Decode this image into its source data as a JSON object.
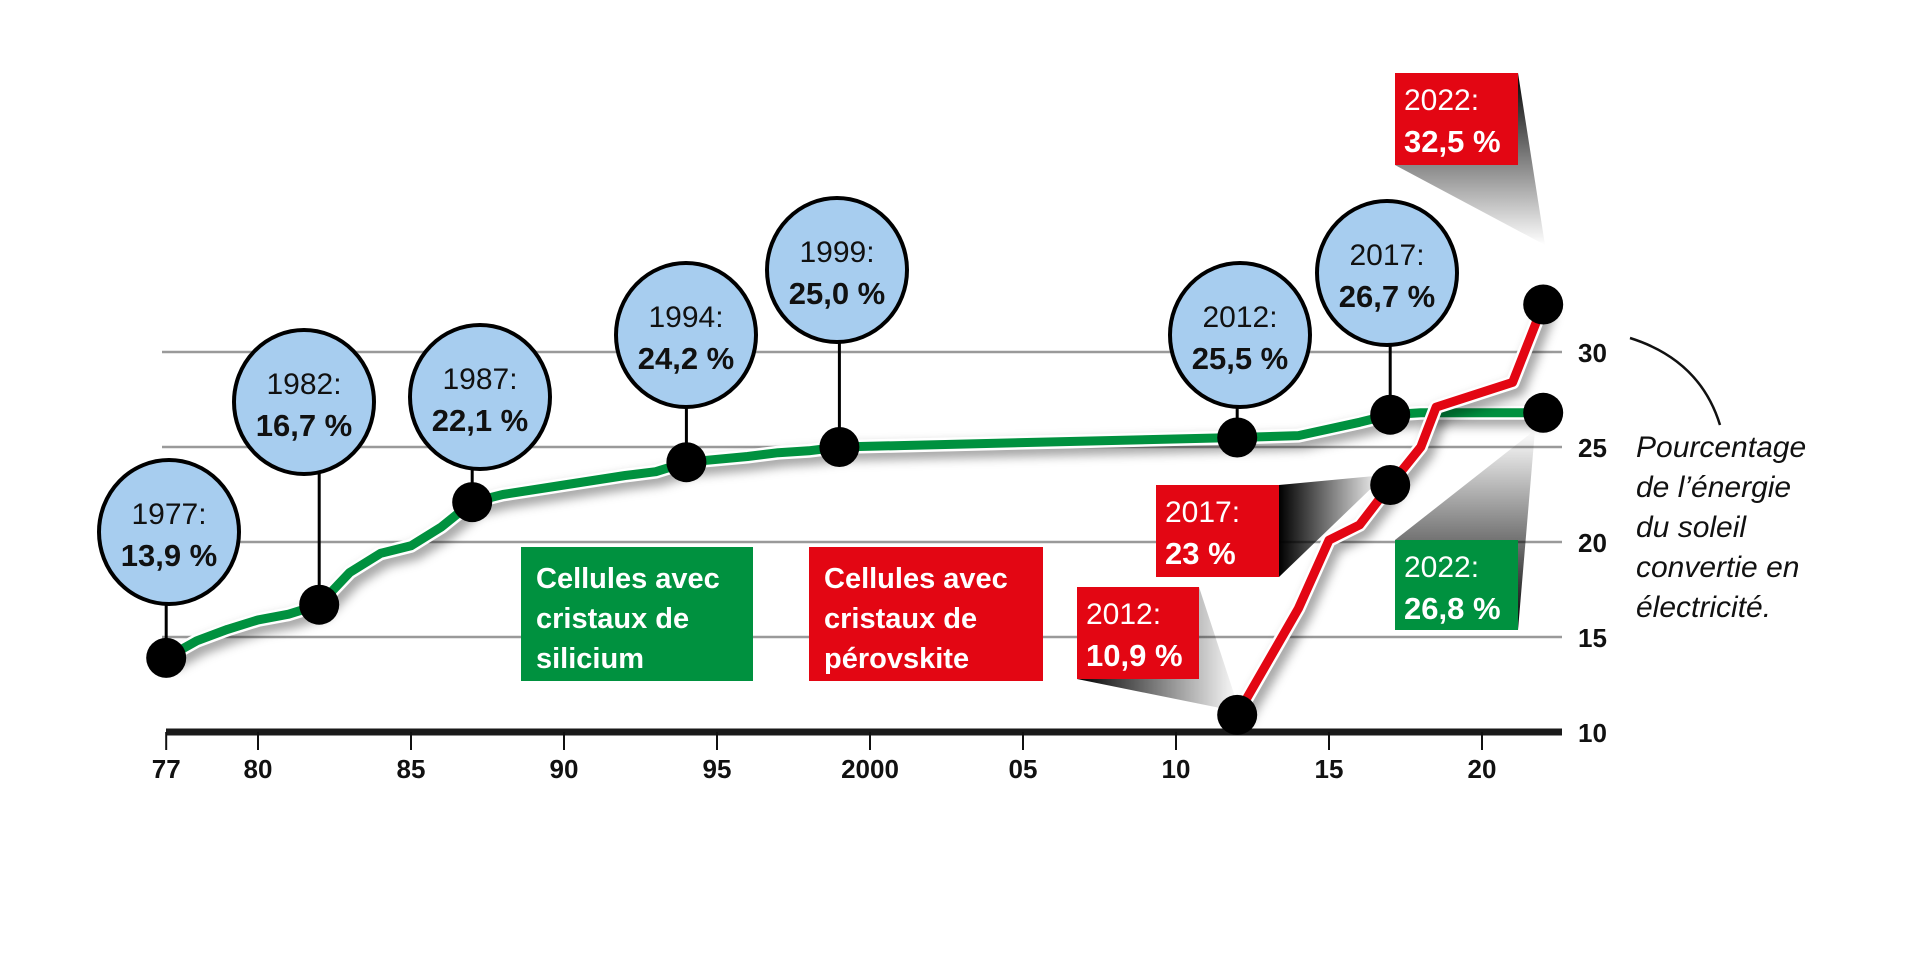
{
  "chart_data": {
    "type": "line",
    "title": "",
    "xlabel": "",
    "ylabel": "Pourcentage de l’énergie du soleil convertie en électricité.",
    "ylabel_lines": [
      "Pourcentage",
      "de l’énergie",
      "du soleil",
      "convertie en",
      "électricité."
    ],
    "xlim": [
      1977,
      2022
    ],
    "ylim": [
      10,
      33
    ],
    "grid": true,
    "x_ticks": [
      {
        "value": 1977,
        "label": "77"
      },
      {
        "value": 1980,
        "label": "80"
      },
      {
        "value": 1985,
        "label": "85"
      },
      {
        "value": 1990,
        "label": "90"
      },
      {
        "value": 1995,
        "label": "95"
      },
      {
        "value": 2000,
        "label": "2000"
      },
      {
        "value": 2005,
        "label": "05"
      },
      {
        "value": 2010,
        "label": "10"
      },
      {
        "value": 2015,
        "label": "15"
      },
      {
        "value": 2020,
        "label": "20"
      }
    ],
    "y_ticks": [
      {
        "value": 10,
        "label": "10"
      },
      {
        "value": 15,
        "label": "15"
      },
      {
        "value": 20,
        "label": "20"
      },
      {
        "value": 25,
        "label": "25"
      },
      {
        "value": 30,
        "label": "30"
      }
    ],
    "series": [
      {
        "name": "Cellules avec cristaux de silicium",
        "legend_lines": [
          "Cellules avec",
          "cristaux de",
          "silicium"
        ],
        "color": "#00913f",
        "x": [
          1977,
          1978,
          1979,
          1980,
          1981,
          1982,
          1983,
          1984,
          1985,
          1986,
          1987,
          1988,
          1990,
          1992,
          1993,
          1994,
          1996,
          1997,
          1998,
          1999,
          2012,
          2014,
          2016,
          2017,
          2018,
          2022
        ],
        "y": [
          13.9,
          14.8,
          15.4,
          15.9,
          16.2,
          16.7,
          18.4,
          19.4,
          19.8,
          20.8,
          22.1,
          22.5,
          23.0,
          23.5,
          23.7,
          24.2,
          24.5,
          24.7,
          24.8,
          25.0,
          25.5,
          25.6,
          26.3,
          26.7,
          26.8,
          26.8
        ],
        "highlights": [
          {
            "x": 1977,
            "year": "1977:",
            "value": "13,9 %"
          },
          {
            "x": 1982,
            "year": "1982:",
            "value": "16,7 %"
          },
          {
            "x": 1987,
            "year": "1987:",
            "value": "22,1 %"
          },
          {
            "x": 1994,
            "year": "1994:",
            "value": "24,2 %"
          },
          {
            "x": 1999,
            "year": "1999:",
            "value": "25,0 %"
          },
          {
            "x": 2012,
            "year": "2012:",
            "value": "25,5 %"
          },
          {
            "x": 2017,
            "year": "2017:",
            "value": "26,7 %"
          },
          {
            "x": 2022,
            "year": "2022:",
            "value": "26,8 %"
          }
        ]
      },
      {
        "name": "Cellules avec cristaux de pérovskite",
        "legend_lines": [
          "Cellules avec",
          "cristaux de",
          "pérovskite"
        ],
        "color": "#e30613",
        "x": [
          2012,
          2014,
          2015,
          2016,
          2017,
          2018,
          2018.5,
          2021,
          2022
        ],
        "y": [
          10.9,
          16.5,
          20.1,
          20.9,
          23.0,
          25.0,
          27.1,
          28.4,
          32.5
        ],
        "highlights": [
          {
            "x": 2012,
            "year": "2012:",
            "value": "10,9 %"
          },
          {
            "x": 2017,
            "year": "2017:",
            "value": "23 %"
          },
          {
            "x": 2022,
            "year": "2022:",
            "value": "32,5 %"
          }
        ]
      }
    ]
  },
  "colors": {
    "bubble": "#a7cdef",
    "green": "#00913f",
    "red": "#e30613",
    "grid": "#9a9a9a"
  }
}
